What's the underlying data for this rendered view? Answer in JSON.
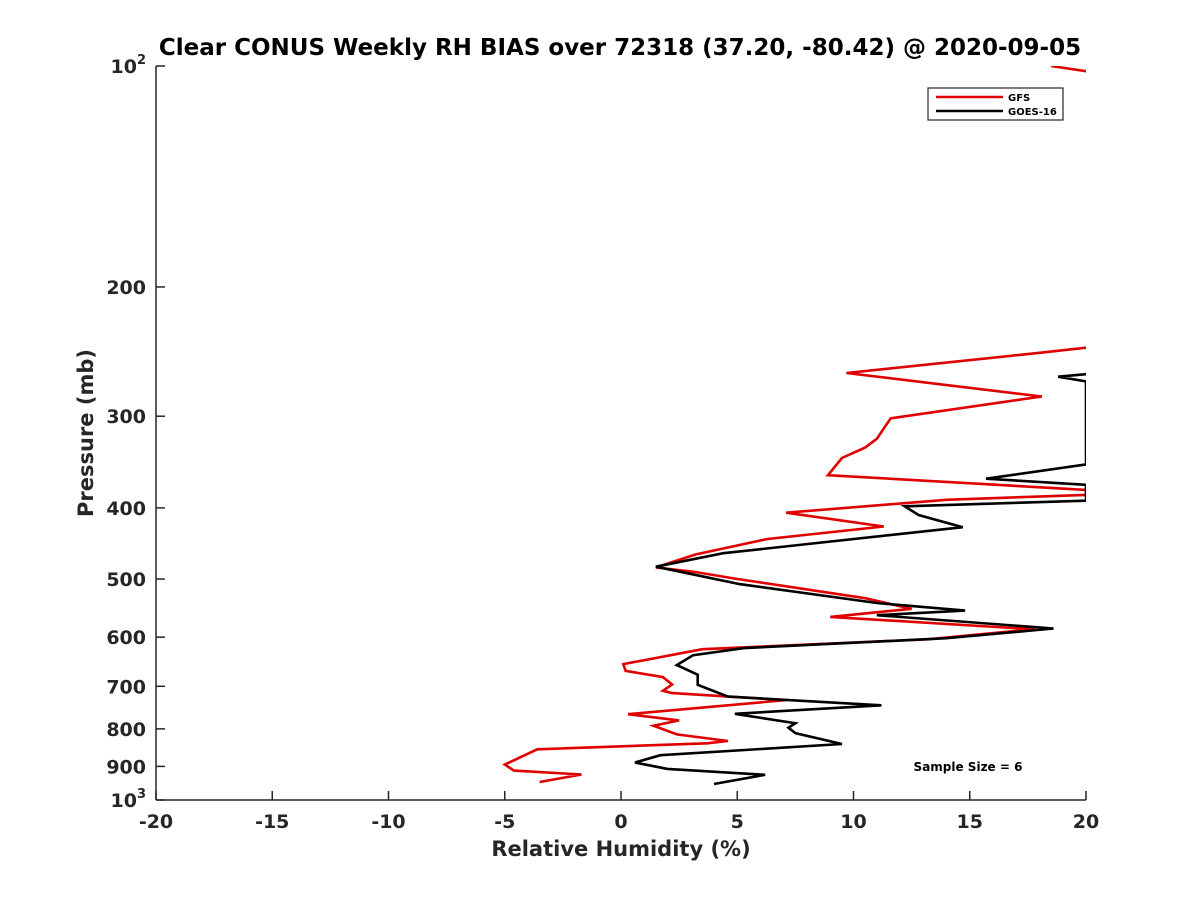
{
  "chart_data": {
    "type": "line",
    "title": "Clear CONUS Weekly RH BIAS over 72318 (37.20, -80.42) @ 2020-09-05",
    "xlabel": "Relative Humidity (%)",
    "ylabel": "Pressure (mb)",
    "xlim": [
      -20,
      20
    ],
    "ylim": [
      100,
      1000
    ],
    "y_scale": "log",
    "y_reversed": true,
    "grid": false,
    "legend_position": "top-right",
    "annotation": "Sample Size = 6",
    "x_ticks": [
      "-20",
      "-15",
      "-10",
      "-5",
      "0",
      "5",
      "10",
      "15",
      "20"
    ],
    "y_ticks": [
      {
        "base": "10",
        "exp": "2"
      },
      {
        "base": "200",
        "exp": ""
      },
      {
        "base": "300",
        "exp": ""
      },
      {
        "base": "400",
        "exp": ""
      },
      {
        "base": "500",
        "exp": ""
      },
      {
        "base": "600",
        "exp": ""
      },
      {
        "base": "700",
        "exp": ""
      },
      {
        "base": "800",
        "exp": ""
      },
      {
        "base": "900",
        "exp": ""
      },
      {
        "base": "10",
        "exp": "3"
      }
    ],
    "series": [
      {
        "name": "GFS",
        "color": "#e00000",
        "points": [
          [
            20.3,
            102
          ],
          [
            18.5,
            100
          ],
          [
            20.0,
            242
          ],
          [
            18.5,
            245
          ],
          [
            9.7,
            262
          ],
          [
            18.1,
            282
          ],
          [
            11.6,
            302
          ],
          [
            11.0,
            322
          ],
          [
            10.5,
            331
          ],
          [
            9.5,
            342
          ],
          [
            8.9,
            361
          ],
          [
            20.0,
            378
          ],
          [
            20.0,
            384
          ],
          [
            14.0,
            390
          ],
          [
            7.1,
            406
          ],
          [
            11.3,
            424
          ],
          [
            6.3,
            441
          ],
          [
            3.2,
            463
          ],
          [
            1.5,
            482
          ],
          [
            3.2,
            489
          ],
          [
            5.0,
            500
          ],
          [
            10.5,
            531
          ],
          [
            12.5,
            549
          ],
          [
            9.0,
            563
          ],
          [
            16.5,
            582
          ],
          [
            17.8,
            585
          ],
          [
            13.2,
            604
          ],
          [
            3.5,
            623
          ],
          [
            0.1,
            653
          ],
          [
            0.2,
            667
          ],
          [
            1.8,
            680
          ],
          [
            2.2,
            696
          ],
          [
            1.8,
            710
          ],
          [
            2.2,
            715
          ],
          [
            7.1,
            731
          ],
          [
            0.3,
            764
          ],
          [
            2.5,
            779
          ],
          [
            1.4,
            792
          ],
          [
            2.4,
            814
          ],
          [
            4.6,
            831
          ],
          [
            3.7,
            837
          ],
          [
            -3.6,
            853
          ],
          [
            -5.0,
            895
          ],
          [
            -4.6,
            912
          ],
          [
            -1.7,
            923
          ],
          [
            -3.5,
            945
          ]
        ]
      },
      {
        "name": "GOES-16",
        "color": "#000000",
        "points": [
          [
            20.0,
            263
          ],
          [
            18.8,
            265
          ],
          [
            20.0,
            269
          ],
          [
            20.0,
            349
          ],
          [
            15.7,
            365
          ],
          [
            20.0,
            372
          ],
          [
            20.0,
            391
          ],
          [
            12.2,
            398
          ],
          [
            12.8,
            409
          ],
          [
            14.7,
            425
          ],
          [
            4.4,
            461
          ],
          [
            1.5,
            481
          ],
          [
            5.1,
            508
          ],
          [
            11.0,
            539
          ],
          [
            14.8,
            552
          ],
          [
            11.0,
            560
          ],
          [
            18.6,
            584
          ],
          [
            14.0,
            602
          ],
          [
            5.3,
            621
          ],
          [
            3.1,
            635
          ],
          [
            2.4,
            655
          ],
          [
            3.3,
            675
          ],
          [
            3.3,
            697
          ],
          [
            4.6,
            723
          ],
          [
            11.2,
            743
          ],
          [
            4.9,
            763
          ],
          [
            7.5,
            786
          ],
          [
            7.2,
            797
          ],
          [
            7.5,
            811
          ],
          [
            9.5,
            839
          ],
          [
            1.7,
            869
          ],
          [
            0.6,
            889
          ],
          [
            2.0,
            907
          ],
          [
            6.2,
            924
          ],
          [
            4.0,
            951
          ]
        ]
      }
    ]
  }
}
